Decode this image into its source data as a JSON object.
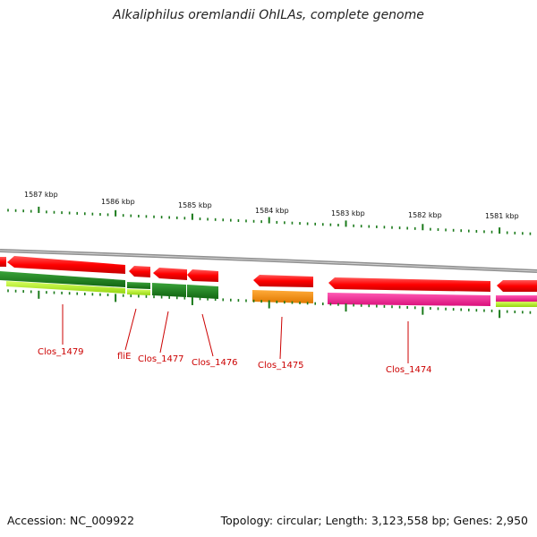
{
  "title": "Alkaliphilus oremlandii OhILAs, complete genome",
  "footer": {
    "accession": "Accession: NC_009922",
    "summary": "Topology: circular; Length: 3,123,558 bp; Genes: 2,950"
  },
  "scale": {
    "unit": "kbp",
    "labels": [
      "1587 kbp",
      "1586 kbp",
      "1585 kbp",
      "1584 kbp",
      "1583 kbp",
      "1582 kbp",
      "1581 kbp"
    ]
  },
  "genes": [
    {
      "label": "Clos_1479",
      "colors": [
        "#1f8a1f",
        "#b3f020"
      ]
    },
    {
      "label": "fliE",
      "colors": [
        "#1f8a1f",
        "#b3f020"
      ]
    },
    {
      "label": "Clos_1477",
      "colors": [
        "#1f8a1f"
      ]
    },
    {
      "label": "Clos_1476",
      "colors": [
        "#1f8a1f"
      ]
    },
    {
      "label": "Clos_1475",
      "colors": [
        "#ff8c00"
      ]
    },
    {
      "label": "Clos_1474",
      "colors": [
        "#ff1493"
      ]
    }
  ],
  "colors": {
    "forward_strand": "#ff0000",
    "label_text": "#cc0000",
    "tick": "#1a7a1a",
    "backbone": "#999999"
  }
}
